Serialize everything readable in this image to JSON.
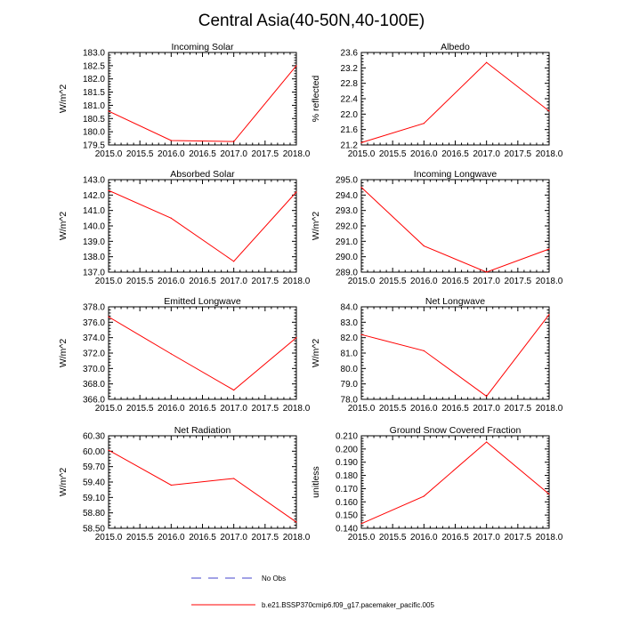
{
  "figure": {
    "title": "Central Asia(40-50N,40-100E)",
    "line_color": "#ff0000",
    "obs_color": "#4444cc",
    "legend": {
      "obs_label": "No Obs",
      "model_label": "b.e21.BSSP370cmip6.f09_g17.pacemaker_pacific.005"
    }
  },
  "chart_data": [
    {
      "type": "line",
      "title": "Incoming Solar",
      "ylabel": "W/m^2",
      "x": [
        2015,
        2016,
        2017,
        2018
      ],
      "values": [
        180.78,
        179.67,
        179.63,
        182.5
      ],
      "xlim": [
        2015,
        2018
      ],
      "ylim": [
        179.5,
        183.0
      ],
      "xticks": [
        "2015.0",
        "2015.5",
        "2016.0",
        "2016.5",
        "2017.0",
        "2017.5",
        "2018.0"
      ],
      "yticks": [
        "179.5",
        "180.0",
        "180.5",
        "181.0",
        "181.5",
        "182.0",
        "182.5",
        "183.0"
      ]
    },
    {
      "type": "line",
      "title": "Albedo",
      "ylabel": "% reflected",
      "x": [
        2015,
        2016,
        2017,
        2018
      ],
      "values": [
        21.26,
        21.76,
        23.34,
        22.08
      ],
      "xlim": [
        2015,
        2018
      ],
      "ylim": [
        21.2,
        23.6
      ],
      "xticks": [
        "2015.0",
        "2015.5",
        "2016.0",
        "2016.5",
        "2017.0",
        "2017.5",
        "2018.0"
      ],
      "yticks": [
        "21.2",
        "21.6",
        "22.0",
        "22.4",
        "22.8",
        "23.2",
        "23.6"
      ]
    },
    {
      "type": "line",
      "title": "Absorbed Solar",
      "ylabel": "W/m^2",
      "x": [
        2015,
        2016,
        2017,
        2018
      ],
      "values": [
        142.3,
        140.5,
        137.7,
        142.2
      ],
      "xlim": [
        2015,
        2018
      ],
      "ylim": [
        137.0,
        143.0
      ],
      "xticks": [
        "2015.0",
        "2015.5",
        "2016.0",
        "2016.5",
        "2017.0",
        "2017.5",
        "2018.0"
      ],
      "yticks": [
        "137.0",
        "138.0",
        "139.0",
        "140.0",
        "141.0",
        "142.0",
        "143.0"
      ]
    },
    {
      "type": "line",
      "title": "Incoming Longwave",
      "ylabel": "W/m^2",
      "x": [
        2015,
        2016,
        2017,
        2018
      ],
      "values": [
        294.5,
        290.7,
        289.0,
        290.5
      ],
      "xlim": [
        2015,
        2018
      ],
      "ylim": [
        289.0,
        295.0
      ],
      "xticks": [
        "2015.0",
        "2015.5",
        "2016.0",
        "2016.5",
        "2017.0",
        "2017.5",
        "2018.0"
      ],
      "yticks": [
        "289.0",
        "290.0",
        "291.0",
        "292.0",
        "293.0",
        "294.0",
        "295.0"
      ]
    },
    {
      "type": "line",
      "title": "Emitted Longwave",
      "ylabel": "W/m^2",
      "x": [
        2015,
        2016,
        2017,
        2018
      ],
      "values": [
        376.7,
        371.9,
        367.2,
        374.0
      ],
      "xlim": [
        2015,
        2018
      ],
      "ylim": [
        366.0,
        378.0
      ],
      "xticks": [
        "2015.0",
        "2015.5",
        "2016.0",
        "2016.5",
        "2017.0",
        "2017.5",
        "2018.0"
      ],
      "yticks": [
        "366.0",
        "368.0",
        "370.0",
        "372.0",
        "374.0",
        "376.0",
        "378.0"
      ]
    },
    {
      "type": "line",
      "title": "Net Longwave",
      "ylabel": "W/m^2",
      "x": [
        2015,
        2016,
        2017,
        2018
      ],
      "values": [
        82.2,
        81.15,
        78.2,
        83.5
      ],
      "xlim": [
        2015,
        2018
      ],
      "ylim": [
        78.0,
        84.0
      ],
      "xticks": [
        "2015.0",
        "2015.5",
        "2016.0",
        "2016.5",
        "2017.0",
        "2017.5",
        "2018.0"
      ],
      "yticks": [
        "78.0",
        "79.0",
        "80.0",
        "81.0",
        "82.0",
        "83.0",
        "84.0"
      ]
    },
    {
      "type": "line",
      "title": "Net Radiation",
      "ylabel": "W/m^2",
      "x": [
        2015,
        2016,
        2017,
        2018
      ],
      "values": [
        60.02,
        59.34,
        59.47,
        58.62
      ],
      "xlim": [
        2015,
        2018
      ],
      "ylim": [
        58.5,
        60.3
      ],
      "xticks": [
        "2015.0",
        "2015.5",
        "2016.0",
        "2016.5",
        "2017.0",
        "2017.5",
        "2018.0"
      ],
      "yticks": [
        "58.50",
        "58.80",
        "59.10",
        "59.40",
        "59.70",
        "60.00",
        "60.30"
      ]
    },
    {
      "type": "line",
      "title": "Ground Snow Covered Fraction",
      "ylabel": "unitless",
      "x": [
        2015,
        2016,
        2017,
        2018
      ],
      "values": [
        0.1435,
        0.1643,
        0.2053,
        0.1658
      ],
      "xlim": [
        2015,
        2018
      ],
      "ylim": [
        0.14,
        0.21
      ],
      "xticks": [
        "2015.0",
        "2015.5",
        "2016.0",
        "2016.5",
        "2017.0",
        "2017.5",
        "2018.0"
      ],
      "yticks": [
        "0.140",
        "0.150",
        "0.160",
        "0.170",
        "0.180",
        "0.190",
        "0.200",
        "0.210"
      ]
    }
  ]
}
